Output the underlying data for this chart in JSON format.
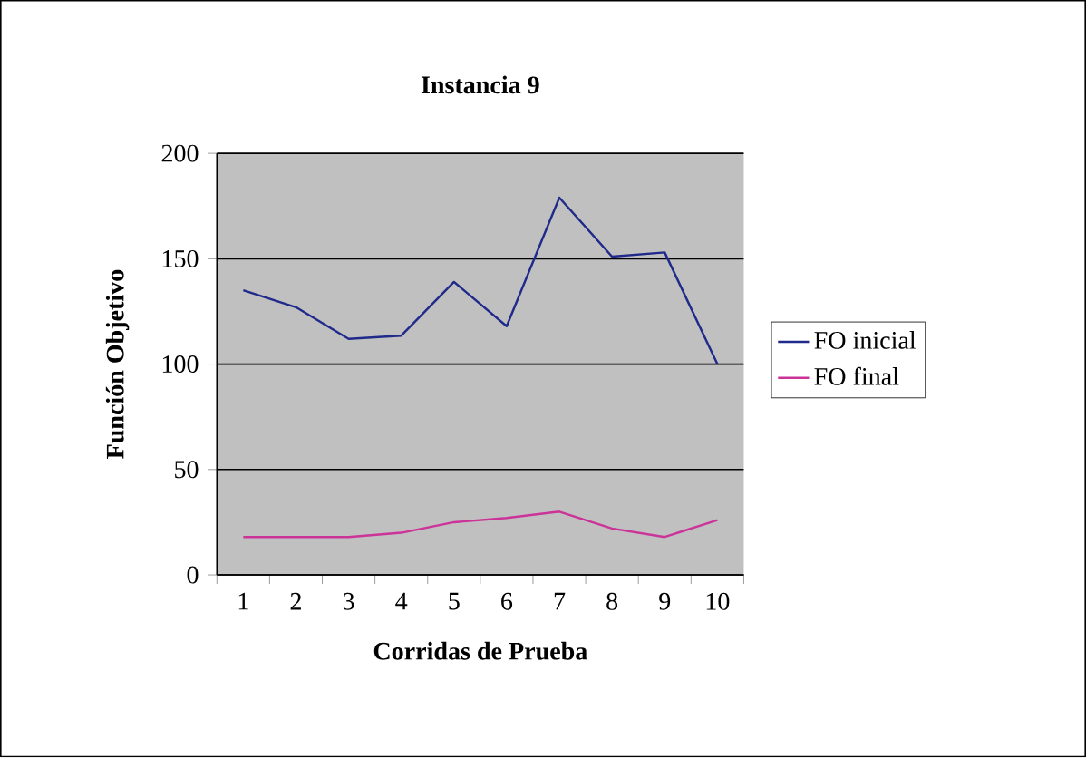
{
  "chart_data": {
    "type": "line",
    "title": "Instancia 9",
    "xlabel": "Corridas de Prueba",
    "ylabel": "Función Objetivo",
    "categories": [
      "1",
      "2",
      "3",
      "4",
      "5",
      "6",
      "7",
      "8",
      "9",
      "10"
    ],
    "series": [
      {
        "name": "FO inicial",
        "color": "#1f2a8a",
        "values": [
          135,
          127,
          112,
          113.5,
          139,
          118,
          179,
          151,
          153,
          100
        ]
      },
      {
        "name": "FO final",
        "color": "#cc3399",
        "values": [
          18,
          18,
          18,
          20,
          25,
          27,
          30,
          22,
          18,
          26
        ]
      }
    ],
    "ylim": [
      0,
      200
    ],
    "yticks": [
      0,
      50,
      100,
      150,
      200
    ],
    "grid": "y",
    "legend": "right",
    "marker": "none",
    "line_style": "solid"
  }
}
